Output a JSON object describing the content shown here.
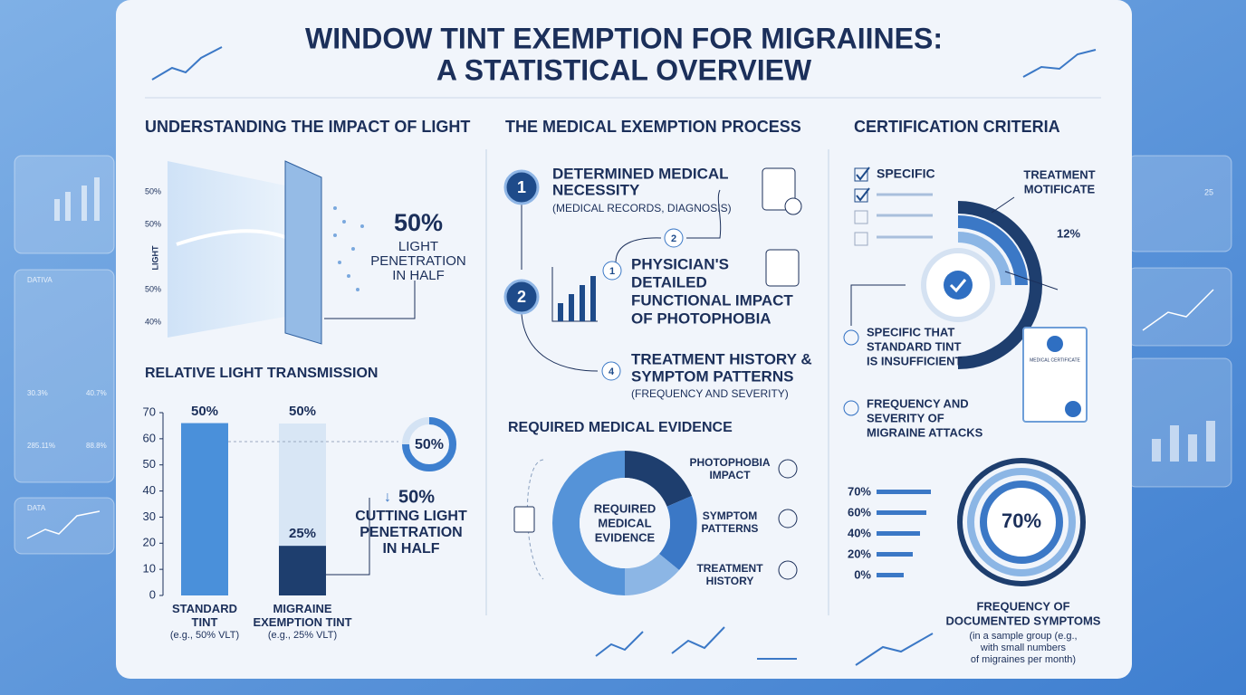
{
  "header": {
    "title": [
      "WINDOW TINT EXEMPTION FOR MIGRAIINES:",
      "A STATISTICAL OVERVIEW"
    ]
  },
  "impact": {
    "heading": "UNDERSTANDING THE IMPACT OF LIGHT",
    "axis_label": "LIGHT",
    "scale_labels": [
      "50%",
      "50%",
      "50%",
      "40%"
    ],
    "stat": "50%",
    "stat_text": [
      "LIGHT",
      "PENETRATION",
      "IN HALF"
    ]
  },
  "chart_data": {
    "type": "bar",
    "title": "RELATIVE LIGHT TRANSMISSION",
    "categories": [
      "STANDARD TINT",
      "MIGRAINE EXEMPTION TINT"
    ],
    "category_notes": [
      "(e.g., 50% VLT)",
      "(e.g., 25% VLT)"
    ],
    "values": [
      66,
      19
    ],
    "colors": [
      "#4a90da",
      "#1e3e6e"
    ],
    "annotations": [
      "50%",
      "50%",
      "25%"
    ],
    "ylim": [
      0,
      70
    ],
    "yticks": [
      0,
      10,
      20,
      30,
      40,
      50,
      60,
      70
    ],
    "ring_label": "50%",
    "cut_stat": "50%",
    "cut_text": [
      "CUTTING LIGHT",
      "PENETRATION",
      "IN HALF"
    ]
  },
  "process": {
    "heading": "THE MEDICAL EXEMPTION PROCESS",
    "steps": [
      {
        "badge": "1",
        "lines": [
          "DETERMINED MEDICAL",
          "NECESSITY"
        ],
        "note": "(MEDICAL RECORDS, DIAGNOSIS)"
      },
      {
        "badge": "1",
        "lines": [
          "PHYSICIAN'S",
          "DETAILED",
          "FUNCTIONAL IMPACT",
          "OF PHOTOPHOBIA"
        ]
      },
      {
        "badge": "4",
        "lines": [
          "TREATMENT HISTORY &",
          "SYMPTOM PATTERNS"
        ],
        "note": "(FREQUENCY AND SEVERITY)"
      }
    ],
    "connector_badges": [
      "2",
      "2"
    ]
  },
  "evidence": {
    "heading": "REQUIRED MEDICAL EVIDENCE",
    "center": [
      "REQUIRED",
      "MEDICAL",
      "EVIDENCE"
    ],
    "segments": [
      [
        "PHOTOPHOBIA",
        "IMPACT"
      ],
      [
        "SYMPTOM",
        "PATTERNS"
      ],
      [
        "TREATMENT",
        "HISTORY"
      ]
    ]
  },
  "criteria": {
    "heading": "CERTIFICATION CRITERIA",
    "check_label": "SPECIFIC",
    "callout": [
      "TREATMENT",
      "MOTIFICATE"
    ],
    "pct": "12%",
    "items": [
      [
        "SPECIFIC THAT",
        "STANDARD TINT",
        "IS INSUFFICIENT"
      ],
      [
        "FREQUENCY AND",
        "SEVERITY OF",
        "MIGRAINE ATTACKS"
      ]
    ],
    "certificate": "MEDICAL CERTIFICATE",
    "bar_labels": [
      "70%",
      "60%",
      "40%",
      "20%",
      "0%"
    ],
    "ring": "70%",
    "caption": [
      "FREQUENCY OF",
      "DOCUMENTED SYMPTOMS"
    ],
    "note": [
      "(in a sample group (e.g.,",
      "with small numbers",
      "of migraines per month)"
    ]
  },
  "side": {
    "left": [
      "DATIVA",
      "30.3%",
      "40.7%",
      "285.11%",
      "88.8%",
      "DATA"
    ],
    "right": [
      "25"
    ]
  }
}
